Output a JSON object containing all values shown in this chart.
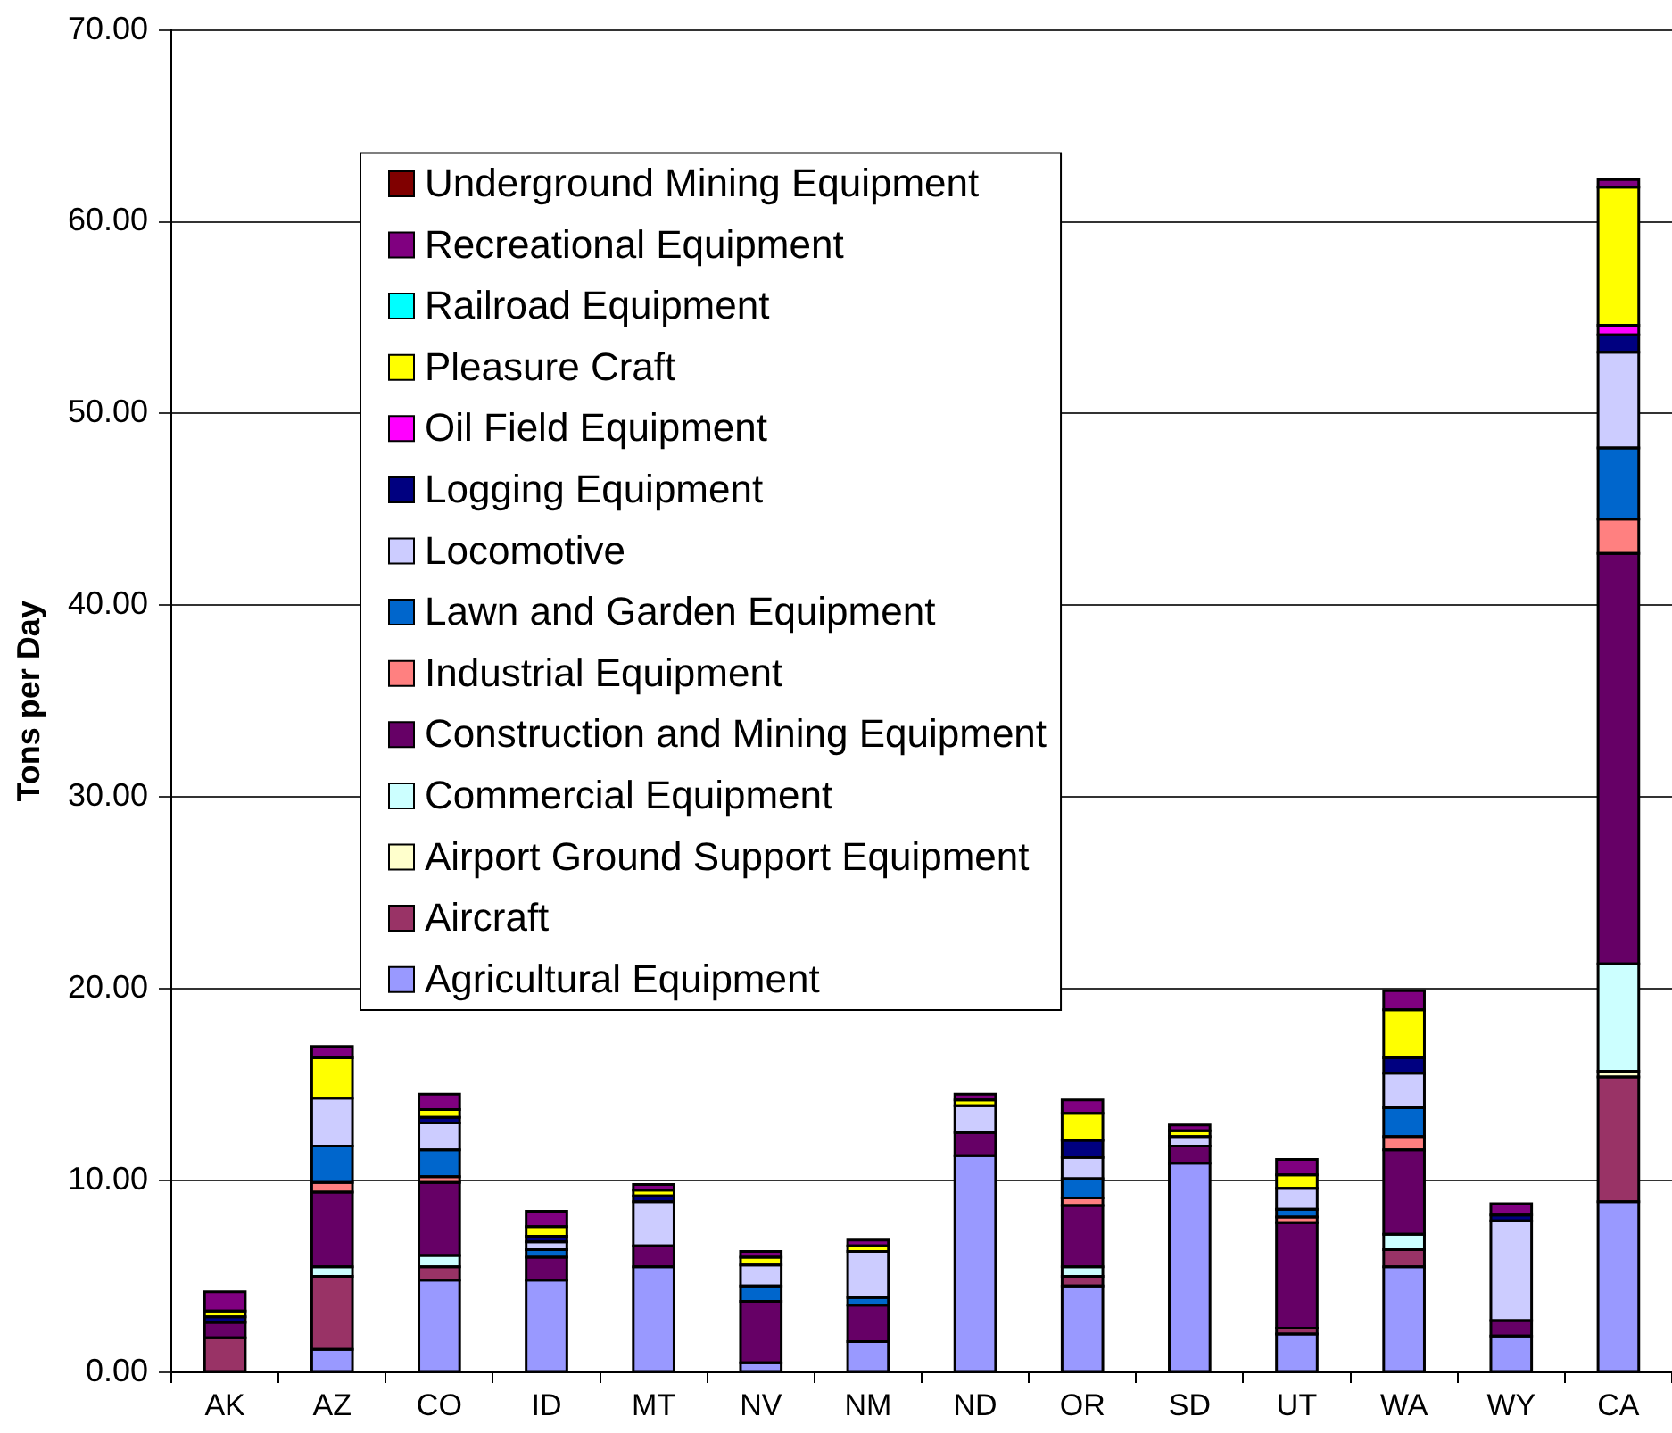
{
  "chart_data": {
    "type": "bar",
    "stacked": true,
    "ylabel": "Tons per Day",
    "categories": [
      "AK",
      "AZ",
      "CO",
      "ID",
      "MT",
      "NV",
      "NM",
      "ND",
      "OR",
      "SD",
      "UT",
      "WA",
      "WY",
      "CA"
    ],
    "series": [
      {
        "name": "Agricultural Equipment",
        "color": "#9999ff",
        "values": [
          null,
          1.2,
          4.8,
          4.8,
          5.5,
          0.5,
          1.6,
          11.3,
          4.5,
          10.9,
          2.0,
          5.5,
          1.9,
          8.9
        ]
      },
      {
        "name": "Aircraft",
        "color": "#993366",
        "values": [
          1.8,
          3.8,
          0.7,
          null,
          null,
          null,
          null,
          null,
          0.5,
          null,
          0.3,
          0.9,
          null,
          6.5
        ]
      },
      {
        "name": "Airport Ground Support Equipment",
        "color": "#ffffcc",
        "values": [
          null,
          null,
          null,
          null,
          null,
          null,
          null,
          null,
          null,
          null,
          null,
          null,
          null,
          0.3
        ]
      },
      {
        "name": "Commercial Equipment",
        "color": "#ccffff",
        "values": [
          null,
          0.5,
          0.6,
          null,
          null,
          null,
          null,
          null,
          0.5,
          null,
          null,
          0.8,
          null,
          5.6
        ]
      },
      {
        "name": "Construction and Mining Equipment",
        "color": "#660066",
        "values": [
          0.8,
          3.9,
          3.8,
          1.2,
          1.1,
          3.2,
          1.9,
          1.2,
          3.2,
          0.9,
          5.5,
          4.4,
          0.8,
          21.4
        ]
      },
      {
        "name": "Industrial Equipment",
        "color": "#ff8080",
        "values": [
          null,
          0.5,
          0.3,
          null,
          null,
          null,
          null,
          null,
          0.4,
          null,
          0.3,
          0.7,
          null,
          1.8
        ]
      },
      {
        "name": "Lawn and Garden Equipment",
        "color": "#0066cc",
        "values": [
          null,
          1.9,
          1.4,
          0.4,
          null,
          0.8,
          0.4,
          null,
          1.0,
          null,
          0.4,
          1.5,
          null,
          3.7
        ]
      },
      {
        "name": "Locomotive",
        "color": "#ccccff",
        "values": [
          null,
          2.5,
          1.4,
          0.4,
          2.3,
          1.1,
          2.4,
          1.4,
          1.1,
          0.5,
          1.1,
          1.8,
          5.2,
          5.0
        ]
      },
      {
        "name": "Logging Equipment",
        "color": "#000080",
        "values": [
          0.3,
          null,
          0.3,
          0.3,
          0.3,
          null,
          null,
          null,
          0.9,
          null,
          null,
          0.8,
          0.3,
          0.9
        ]
      },
      {
        "name": "Oil Field Equipment",
        "color": "#ff00ff",
        "values": [
          null,
          null,
          null,
          null,
          null,
          null,
          null,
          null,
          null,
          null,
          null,
          null,
          null,
          0.5
        ]
      },
      {
        "name": "Pleasure Craft",
        "color": "#ffff00",
        "values": [
          0.3,
          2.1,
          0.4,
          0.5,
          0.3,
          0.4,
          0.3,
          0.3,
          1.4,
          0.3,
          0.7,
          2.5,
          null,
          7.2
        ]
      },
      {
        "name": "Railroad Equipment",
        "color": "#00ffff",
        "values": [
          null,
          null,
          null,
          null,
          null,
          null,
          null,
          null,
          null,
          null,
          null,
          null,
          null,
          null
        ]
      },
      {
        "name": "Recreational Equipment",
        "color": "#800080",
        "values": [
          1.0,
          0.6,
          0.8,
          0.8,
          0.3,
          0.3,
          0.3,
          0.3,
          0.7,
          0.3,
          0.8,
          1.0,
          0.6,
          0.4
        ]
      },
      {
        "name": "Underground Mining Equipment",
        "color": "#800000",
        "values": [
          null,
          null,
          null,
          null,
          null,
          null,
          null,
          null,
          null,
          null,
          null,
          null,
          null,
          null
        ]
      }
    ],
    "ylim": [
      0,
      70
    ],
    "yticks": [
      {
        "value": 0,
        "label": "0.00"
      },
      {
        "value": 10,
        "label": "10.00"
      },
      {
        "value": 20,
        "label": "20.00"
      },
      {
        "value": 30,
        "label": "30.00"
      },
      {
        "value": 40,
        "label": "40.00"
      },
      {
        "value": 50,
        "label": "50.00"
      },
      {
        "value": 60,
        "label": "60.00"
      },
      {
        "value": 70,
        "label": "70.00"
      }
    ],
    "grid": "y",
    "legend": "top left"
  }
}
